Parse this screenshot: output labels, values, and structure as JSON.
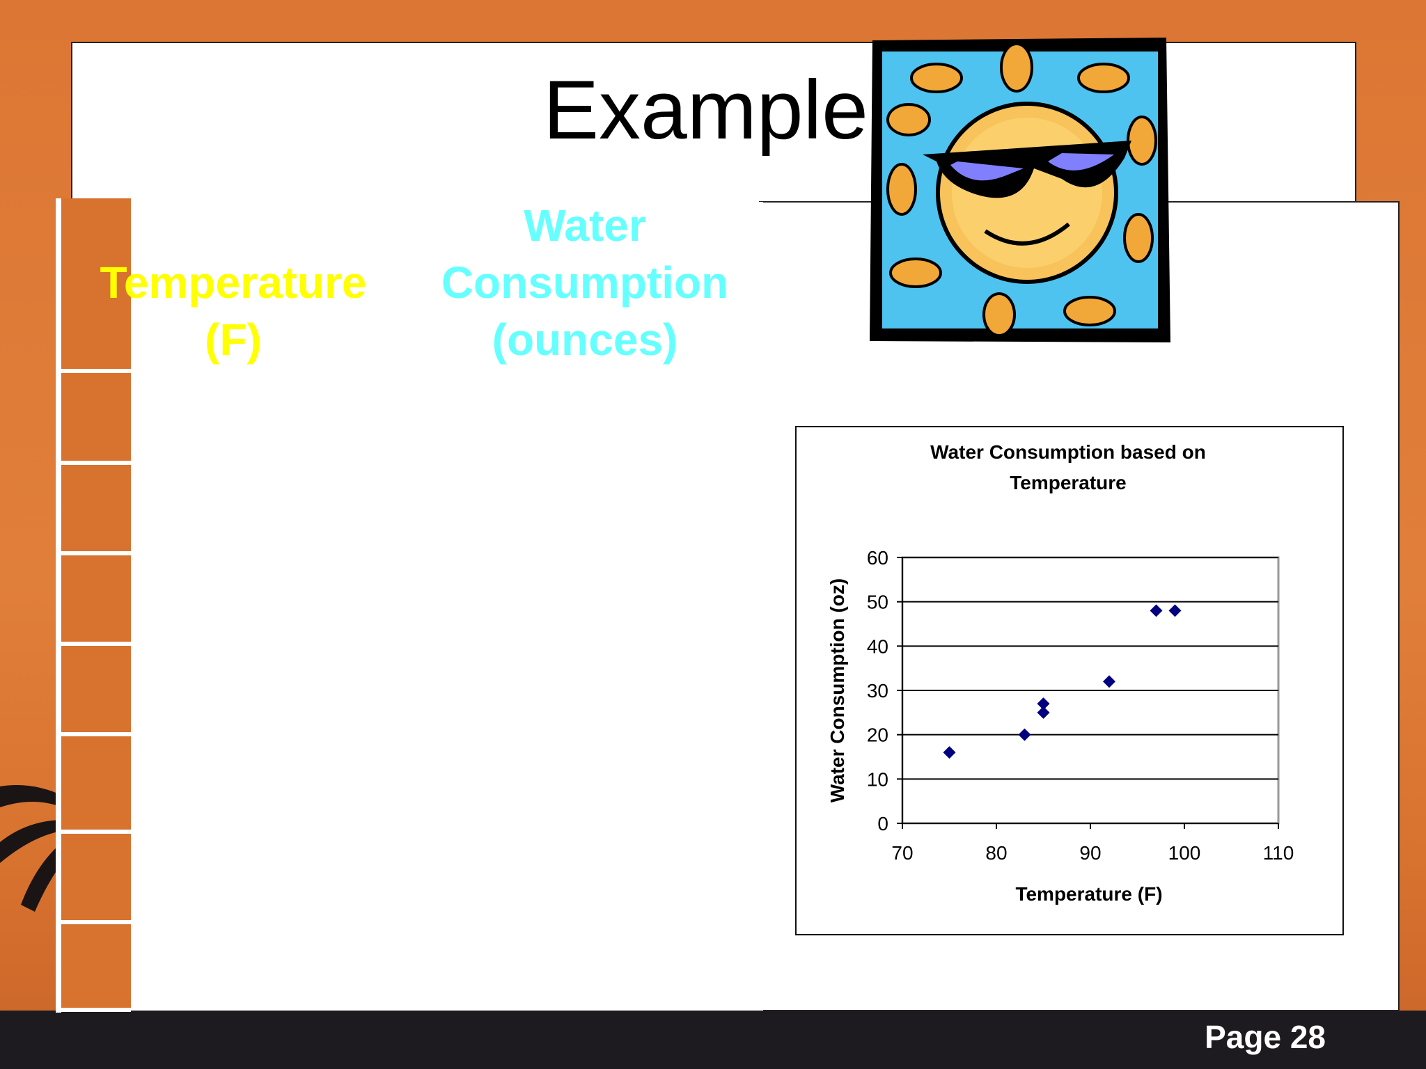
{
  "slide": {
    "title": "Example",
    "page_label": "Page 28"
  },
  "table": {
    "col1_header": "Temperature (F)",
    "col2_header": "Water Consumption (ounces)"
  },
  "colors": {
    "background": "#e07a36",
    "col1_header": "#ffff00",
    "col2_header": "#66ffff",
    "marker": "#000080"
  },
  "images": {
    "clipart": "sun-with-sunglasses-icon",
    "background": "palm-tree-silhouette"
  },
  "chart_data": {
    "type": "scatter",
    "title": "Water Consumption based on Temperature",
    "xlabel": "Temperature (F)",
    "ylabel": "Water Consumption (oz)",
    "xlim": [
      70,
      110
    ],
    "ylim": [
      0,
      60
    ],
    "xticks": [
      70,
      80,
      90,
      100,
      110
    ],
    "yticks": [
      0,
      10,
      20,
      30,
      40,
      50,
      60
    ],
    "grid": "horizontal",
    "legend": "none",
    "series": [
      {
        "x": [
          75,
          83,
          85,
          85,
          92,
          97,
          99
        ],
        "y": [
          16,
          20,
          25,
          27,
          32,
          48,
          48
        ]
      }
    ]
  }
}
